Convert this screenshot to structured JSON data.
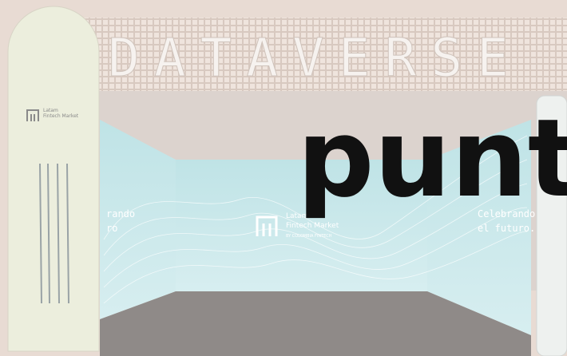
{
  "sign": {
    "title": "DATAVERSE"
  },
  "overlay": {
    "text": "punt"
  },
  "center_logo": {
    "line1": "Latam",
    "line2": "Fintech Market",
    "line3": "BY COLOMBIA FINTECH"
  },
  "totem_logo": {
    "line1": "Latam",
    "line2": "Fintech Market"
  },
  "right_wall": {
    "line1": "Celebrando",
    "line2": "el futuro."
  },
  "left_wall": {
    "line1": "rando",
    "line2": "ro"
  }
}
